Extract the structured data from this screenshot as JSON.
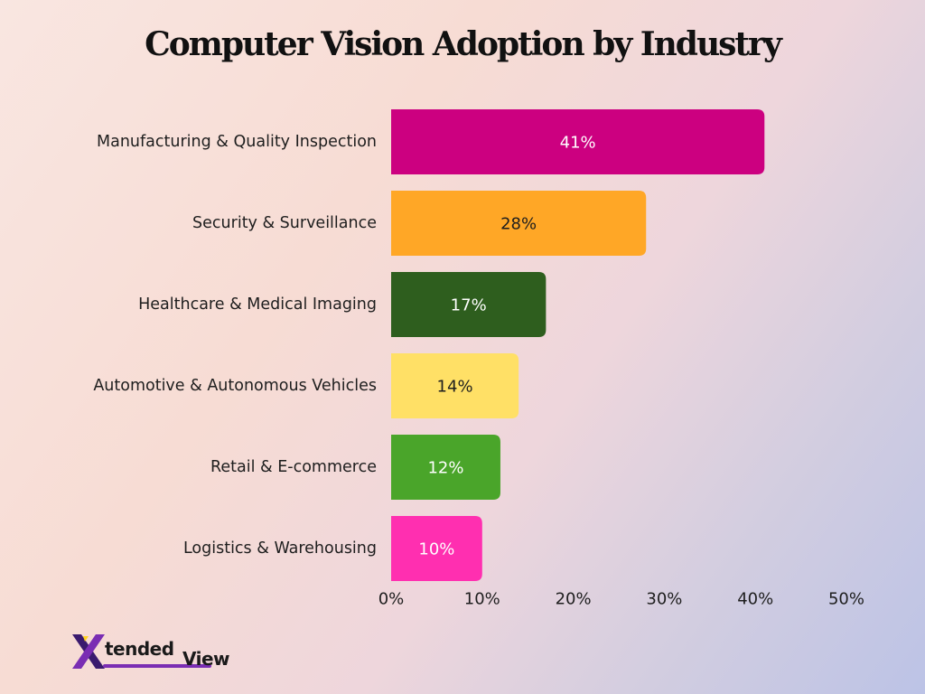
{
  "chart_data": {
    "type": "bar",
    "orientation": "horizontal",
    "title": "Computer Vision Adoption by Industry",
    "categories": [
      "Manufacturing & Quality Inspection",
      "Security & Surveillance",
      "Healthcare & Medical Imaging",
      "Automotive & Autonomous Vehicles",
      "Retail & E-commerce",
      "Logistics & Warehousing"
    ],
    "values": [
      41,
      28,
      17,
      14,
      12,
      10
    ],
    "value_labels": [
      "41%",
      "28%",
      "17%",
      "14%",
      "12%",
      "10%"
    ],
    "colors": [
      "#cc0080",
      "#ffa726",
      "#2e5e1e",
      "#ffe066",
      "#4aa52a",
      "#ff2fb0"
    ],
    "label_colors": [
      "#ffffff",
      "#1e1e1e",
      "#ffffff",
      "#1e1e1e",
      "#ffffff",
      "#ffffff"
    ],
    "xlim": [
      0,
      50
    ],
    "x_ticks": [
      0,
      10,
      20,
      30,
      40,
      50
    ],
    "x_tick_labels": [
      "0%",
      "10%",
      "20%",
      "30%",
      "40%",
      "50%"
    ],
    "grid": false,
    "legend": "none"
  },
  "branding": {
    "logo_x": "X",
    "logo_tended": "tended",
    "logo_view": "View",
    "logo_colors": {
      "x_dark": "#3a1a6e",
      "x_light": "#7a2db3",
      "x_accent": "#ffd21f"
    }
  }
}
